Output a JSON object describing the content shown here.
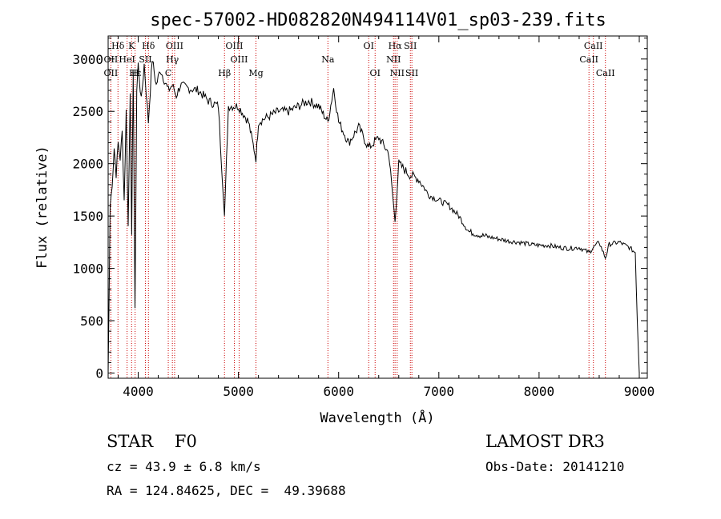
{
  "chart_data": {
    "type": "line",
    "title": "spec-57002-HD082820N494114V01_sp03-239.fits",
    "xlabel": "Wavelength (Å)",
    "ylabel": "Flux (relative)",
    "xlim": [
      3700,
      9080
    ],
    "ylim": [
      -50,
      3220
    ],
    "x_ticks": [
      4000,
      5000,
      6000,
      7000,
      8000,
      9000
    ],
    "y_ticks": [
      0,
      500,
      1000,
      1500,
      2000,
      2500,
      3000
    ],
    "grid": false,
    "series": [
      {
        "x": [
          3700,
          3720,
          3740,
          3760,
          3780,
          3800,
          3820,
          3840,
          3860,
          3880,
          3900,
          3920,
          3935,
          3950,
          3968,
          3985,
          4000,
          4030,
          4060,
          4101,
          4140,
          4180,
          4220,
          4260,
          4300,
          4340,
          4380,
          4420,
          4500,
          4600,
          4700,
          4800,
          4861,
          4900,
          5000,
          5100,
          5175,
          5200,
          5300,
          5400,
          5500,
          5600,
          5700,
          5800,
          5893,
          5950,
          6000,
          6100,
          6200,
          6300,
          6400,
          6500,
          6563,
          6600,
          6700,
          6800,
          6900,
          7000,
          7100,
          7200,
          7300,
          7400,
          7500,
          7600,
          7700,
          7800,
          7900,
          8000,
          8100,
          8200,
          8300,
          8400,
          8498,
          8542,
          8600,
          8662,
          8700,
          8800,
          8900,
          8960,
          8980,
          9000
        ],
        "y": [
          0,
          1600,
          1800,
          2150,
          1900,
          2200,
          2050,
          2300,
          1650,
          2500,
          1400,
          2700,
          1300,
          2900,
          600,
          2700,
          2950,
          2600,
          2950,
          2400,
          3000,
          2750,
          2900,
          2800,
          2700,
          2750,
          2650,
          2750,
          2720,
          2700,
          2600,
          2550,
          1500,
          2550,
          2550,
          2400,
          2050,
          2400,
          2450,
          2500,
          2500,
          2550,
          2600,
          2550,
          2400,
          2720,
          2400,
          2200,
          2350,
          2150,
          2250,
          2100,
          1450,
          2000,
          1900,
          1850,
          1700,
          1650,
          1600,
          1500,
          1350,
          1320,
          1300,
          1280,
          1260,
          1250,
          1230,
          1220,
          1220,
          1200,
          1190,
          1200,
          1150,
          1200,
          1250,
          1100,
          1230,
          1250,
          1200,
          1150,
          500,
          0
        ]
      }
    ],
    "lines": [
      {
        "label": "Hδ",
        "x": 3798,
        "row": 0
      },
      {
        "label": "OII",
        "x": 3727,
        "row": 1
      },
      {
        "label": "OII",
        "x": 3727,
        "row": 2
      },
      {
        "label": "K",
        "x": 3934,
        "row": 0
      },
      {
        "label": "HeI",
        "x": 3889,
        "row": 1
      },
      {
        "label": "H",
        "x": 3969,
        "row": 2
      },
      {
        "label": "Hε",
        "x": 3970,
        "row": 2
      },
      {
        "label": "Hδ",
        "x": 4102,
        "row": 0
      },
      {
        "label": "SII",
        "x": 4072,
        "row": 1
      },
      {
        "label": "OIII",
        "x": 4363,
        "row": 0
      },
      {
        "label": "Hγ",
        "x": 4341,
        "row": 1
      },
      {
        "label": "C",
        "x": 4300,
        "row": 2
      },
      {
        "label": "OIII",
        "x": 4959,
        "row": 0
      },
      {
        "label": "OIII",
        "x": 5007,
        "row": 1
      },
      {
        "label": "Hβ",
        "x": 4861,
        "row": 2
      },
      {
        "label": "Mg",
        "x": 5175,
        "row": 2
      },
      {
        "label": "Na",
        "x": 5893,
        "row": 1
      },
      {
        "label": "OI",
        "x": 6300,
        "row": 0
      },
      {
        "label": "OI",
        "x": 6364,
        "row": 2
      },
      {
        "label": "Hα",
        "x": 6563,
        "row": 0
      },
      {
        "label": "SII",
        "x": 6716,
        "row": 0
      },
      {
        "label": "NII",
        "x": 6548,
        "row": 1
      },
      {
        "label": "NII",
        "x": 6584,
        "row": 2
      },
      {
        "label": "SII",
        "x": 6731,
        "row": 2
      },
      {
        "label": "CaII",
        "x": 8542,
        "row": 0
      },
      {
        "label": "CaII",
        "x": 8498,
        "row": 1
      },
      {
        "label": "CaII",
        "x": 8662,
        "row": 2
      }
    ]
  },
  "info": {
    "class": "STAR    F0",
    "survey": "LAMOST DR3",
    "cz": "cz = 43.9 ± 6.8 km/s",
    "obs_date": "Obs-Date: 20141210",
    "radec": "RA = 124.84625, DEC =  49.39688"
  },
  "colors": {
    "spectrum": "#000000",
    "line_marker": "#cc0000"
  }
}
